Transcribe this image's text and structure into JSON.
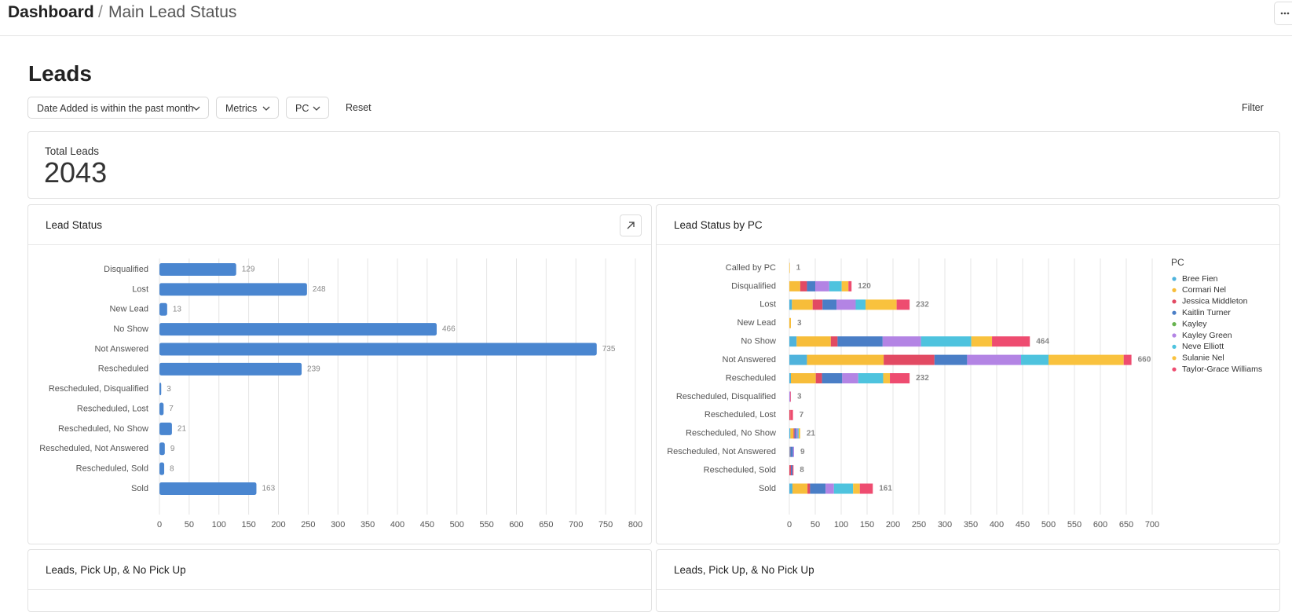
{
  "breadcrumb": {
    "root": "Dashboard",
    "current": "Main Lead Status"
  },
  "heading": "Leads",
  "filters": [
    "Date Added is within the past month",
    "Metrics",
    "PC"
  ],
  "reset": "Reset",
  "filter": "Filter",
  "kpi": {
    "label": "Total Leads",
    "value": 2043
  },
  "bottom_panels": [
    "Leads, Pick Up, & No Pick Up",
    "Leads, Pick Up, & No Pick Up"
  ],
  "chart_data": [
    {
      "type": "bar",
      "orientation": "horizontal",
      "title": "Lead Status",
      "color": "#4a86d0",
      "categories": [
        "Disqualified",
        "Lost",
        "New Lead",
        "No Show",
        "Not Answered",
        "Rescheduled",
        "Rescheduled, Disqualified",
        "Rescheduled, Lost",
        "Rescheduled, No Show",
        "Rescheduled, Not Answered",
        "Rescheduled, Sold",
        "Sold"
      ],
      "values": [
        129,
        248,
        13,
        466,
        735,
        239,
        3,
        7,
        21,
        9,
        8,
        163
      ],
      "xlim": [
        0,
        800
      ],
      "xticks": [
        0,
        50,
        100,
        150,
        200,
        250,
        300,
        350,
        400,
        450,
        500,
        550,
        600,
        650,
        700,
        750,
        800
      ],
      "grid": true
    },
    {
      "type": "stacked_bar",
      "orientation": "horizontal",
      "title": "Lead Status by PC",
      "legend_title": "PC",
      "legend": "right",
      "categories": [
        "Called by PC",
        "Disqualified",
        "Lost",
        "New Lead",
        "No Show",
        "Not Answered",
        "Rescheduled",
        "Rescheduled, Disqualified",
        "Rescheduled, Lost",
        "Rescheduled, No Show",
        "Rescheduled, Not Answered",
        "Rescheduled, Sold",
        "Sold"
      ],
      "series": [
        {
          "name": "Bree Fien",
          "color": "#4fb3dc",
          "values": [
            0,
            0,
            5,
            0,
            14,
            34,
            3,
            0,
            0,
            2,
            1,
            0,
            6
          ]
        },
        {
          "name": "Cormari Nel",
          "color": "#f7bd3a",
          "values": [
            1,
            21,
            40,
            3,
            66,
            148,
            48,
            0,
            0,
            6,
            0,
            0,
            29
          ]
        },
        {
          "name": "Jessica Middleton",
          "color": "#e24a63",
          "values": [
            0,
            13,
            19,
            0,
            13,
            98,
            12,
            0,
            2,
            2,
            1,
            3,
            5
          ]
        },
        {
          "name": "Kaitlin Turner",
          "color": "#4a7ec6",
          "values": [
            0,
            16,
            27,
            0,
            87,
            63,
            39,
            0,
            0,
            3,
            5,
            3,
            30
          ]
        },
        {
          "name": "Kayley",
          "color": "#67b34f",
          "values": [
            0,
            0,
            0,
            0,
            0,
            0,
            0,
            0,
            0,
            0,
            0,
            0,
            0
          ]
        },
        {
          "name": "Kayley Green",
          "color": "#b384e4",
          "values": [
            0,
            27,
            37,
            0,
            74,
            104,
            31,
            2,
            0,
            3,
            2,
            0,
            16
          ]
        },
        {
          "name": "Neve Elliott",
          "color": "#4ec3de",
          "values": [
            0,
            24,
            19,
            0,
            97,
            53,
            48,
            0,
            0,
            2,
            0,
            0,
            37
          ]
        },
        {
          "name": "Sulanie Nel",
          "color": "#f9c23e",
          "values": [
            0,
            13,
            60,
            0,
            40,
            145,
            13,
            0,
            0,
            3,
            0,
            0,
            13
          ]
        },
        {
          "name": "Taylor-Grace Williams",
          "color": "#ee4c70",
          "values": [
            0,
            6,
            25,
            0,
            73,
            15,
            38,
            1,
            5,
            0,
            0,
            2,
            25
          ]
        }
      ],
      "totals": [
        1,
        120,
        232,
        3,
        464,
        660,
        232,
        3,
        7,
        21,
        9,
        8,
        161
      ],
      "xlim": [
        0,
        700
      ],
      "xticks": [
        0,
        50,
        100,
        150,
        200,
        250,
        300,
        350,
        400,
        450,
        500,
        550,
        600,
        650,
        700
      ],
      "grid": true
    }
  ]
}
